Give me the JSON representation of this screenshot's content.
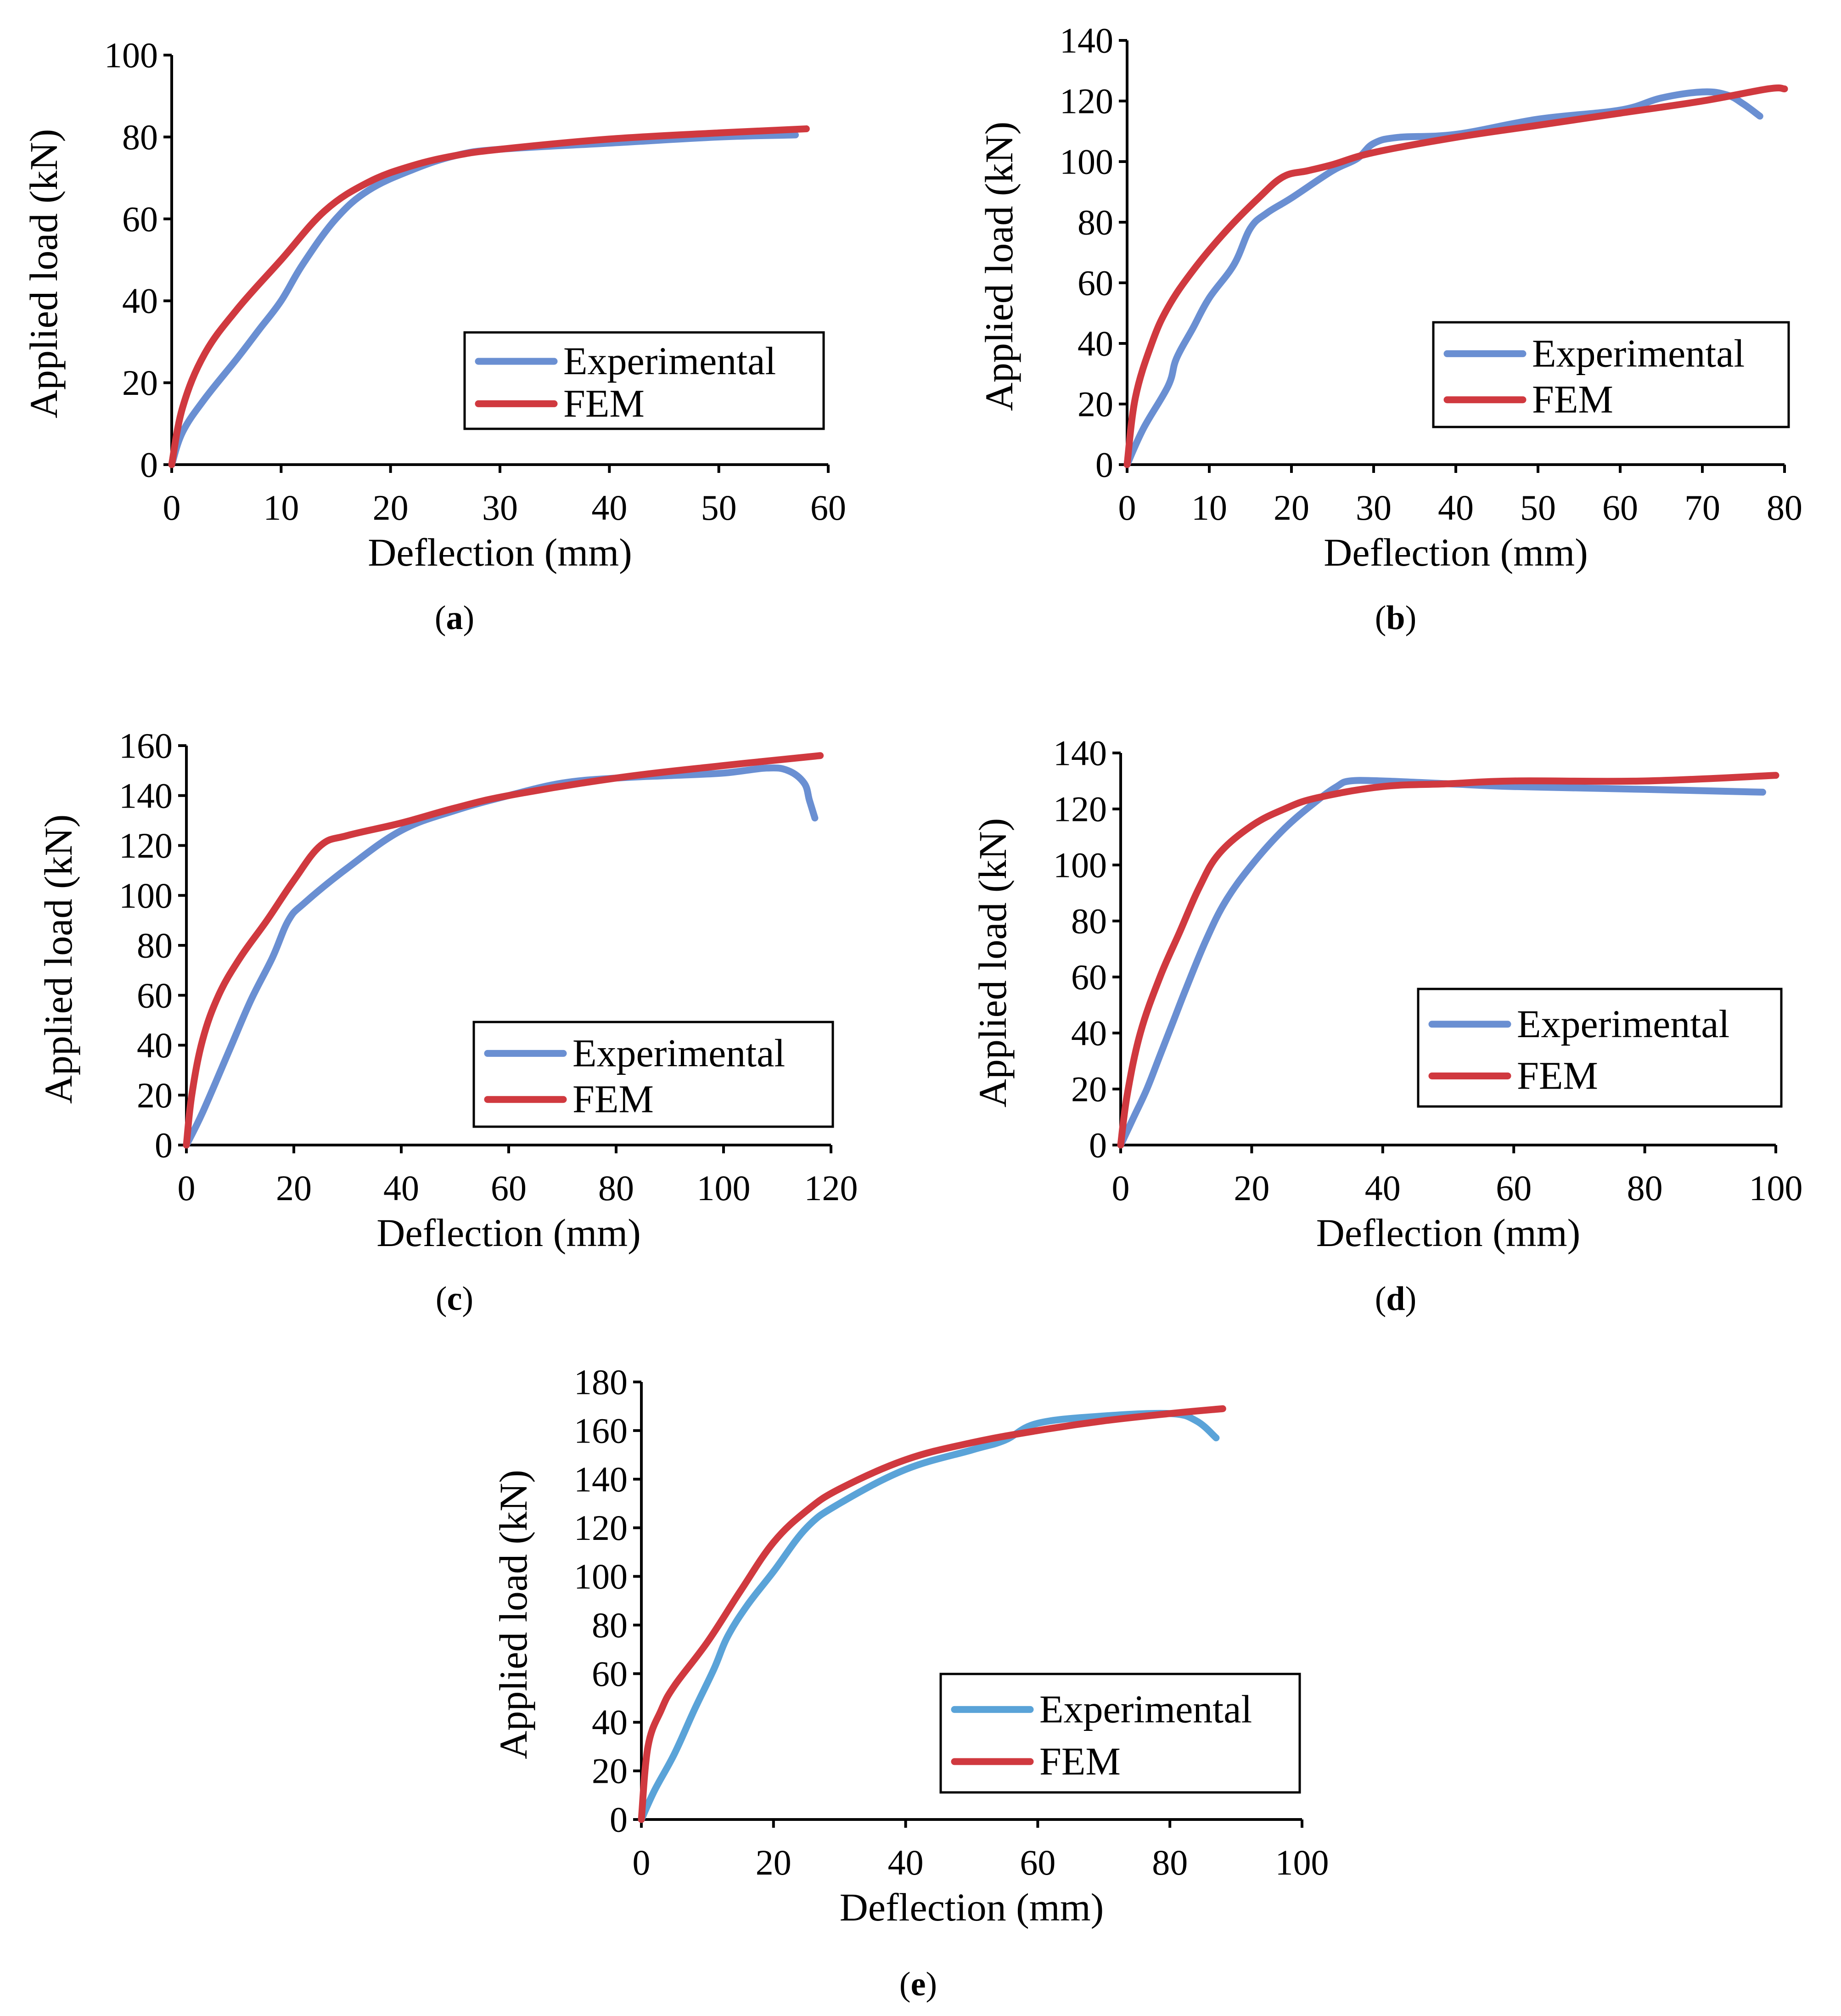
{
  "colors": {
    "experimental": "#6a8fd2",
    "experimental_e": "#5aa3d8",
    "fem": "#d0393f",
    "axis": "#000000"
  },
  "chart_data": [
    {
      "id": "a",
      "type": "line",
      "caption": "(a)",
      "xlabel": "Deflection (mm)",
      "ylabel": "Applied load (kN)",
      "xlim": [
        0,
        60
      ],
      "ylim": [
        0,
        100
      ],
      "xticks": [
        0,
        10,
        20,
        30,
        40,
        50,
        60
      ],
      "yticks": [
        0,
        20,
        40,
        60,
        80,
        100
      ],
      "grid": false,
      "legend_position": "bottom-right",
      "series": [
        {
          "name": "Experimental",
          "color_key": "experimental",
          "x": [
            0,
            1,
            3,
            6,
            8,
            10,
            12,
            15,
            18,
            22,
            26,
            30,
            40,
            50,
            57
          ],
          "y": [
            0,
            8,
            16,
            26,
            33,
            40,
            49,
            60,
            67,
            72,
            75.5,
            77,
            78.5,
            80,
            80.5
          ]
        },
        {
          "name": "FEM",
          "color_key": "fem",
          "x": [
            0,
            1,
            3,
            6,
            10,
            14,
            18,
            22,
            26,
            30,
            40,
            50,
            58
          ],
          "y": [
            0,
            14,
            27,
            38,
            50,
            62,
            69,
            73,
            75.5,
            77,
            79.5,
            81,
            82
          ]
        }
      ]
    },
    {
      "id": "b",
      "type": "line",
      "caption": "(b)",
      "xlabel": "Deflection (mm)",
      "ylabel": "Applied load (kN)",
      "xlim": [
        0,
        80
      ],
      "ylim": [
        0,
        140
      ],
      "xticks": [
        0,
        10,
        20,
        30,
        40,
        50,
        60,
        70,
        80
      ],
      "yticks": [
        0,
        20,
        40,
        60,
        80,
        100,
        120,
        140
      ],
      "grid": false,
      "legend_position": "bottom-right",
      "series": [
        {
          "name": "Experimental",
          "color_key": "experimental",
          "x": [
            0,
            2,
            5,
            6,
            8,
            10,
            13,
            15,
            17,
            20,
            25,
            28,
            30,
            33,
            40,
            50,
            60,
            65,
            70,
            73,
            75,
            77
          ],
          "y": [
            0,
            12,
            26,
            35,
            45,
            55,
            66,
            78,
            83,
            88,
            97,
            101,
            106,
            108,
            109,
            114,
            117,
            121,
            123,
            122,
            119,
            115
          ]
        },
        {
          "name": "FEM",
          "color_key": "fem",
          "x": [
            0,
            1,
            3,
            5,
            8,
            12,
            16,
            19,
            22,
            25,
            30,
            40,
            50,
            60,
            70,
            78,
            80
          ],
          "y": [
            0,
            22,
            40,
            52,
            64,
            77,
            88,
            95,
            97,
            99,
            103,
            108,
            112,
            116,
            120,
            124,
            124
          ]
        }
      ]
    },
    {
      "id": "c",
      "type": "line",
      "caption": "(c)",
      "xlabel": "Deflection (mm)",
      "ylabel": "Applied load (kN)",
      "xlim": [
        0,
        120
      ],
      "ylim": [
        0,
        160
      ],
      "xticks": [
        0,
        20,
        40,
        60,
        80,
        100,
        120
      ],
      "yticks": [
        0,
        20,
        40,
        60,
        80,
        100,
        120,
        140,
        160
      ],
      "grid": false,
      "legend_position": "bottom-right",
      "series": [
        {
          "name": "Experimental",
          "color_key": "experimental",
          "x": [
            0,
            3,
            8,
            12,
            16,
            19,
            22,
            30,
            40,
            50,
            60,
            70,
            80,
            90,
            100,
            108,
            112,
            115,
            116,
            117
          ],
          "y": [
            0,
            13,
            38,
            58,
            75,
            90,
            97,
            111,
            126,
            134,
            140,
            145,
            147,
            148,
            149,
            151,
            150,
            145,
            138,
            131
          ]
        },
        {
          "name": "FEM",
          "color_key": "fem",
          "x": [
            0,
            1,
            3,
            6,
            10,
            15,
            20,
            25,
            30,
            40,
            50,
            60,
            80,
            100,
            118
          ],
          "y": [
            0,
            20,
            42,
            60,
            75,
            90,
            106,
            120,
            124,
            129,
            135,
            140,
            147,
            152,
            156
          ]
        }
      ]
    },
    {
      "id": "d",
      "type": "line",
      "caption": "(d)",
      "xlabel": "Deflection (mm)",
      "ylabel": "Applied load (kN)",
      "xlim": [
        0,
        100
      ],
      "ylim": [
        0,
        140
      ],
      "xticks": [
        0,
        20,
        40,
        60,
        80,
        100
      ],
      "yticks": [
        0,
        20,
        40,
        60,
        80,
        100,
        120,
        140
      ],
      "grid": false,
      "legend_position": "bottom-right",
      "series": [
        {
          "name": "Experimental",
          "color_key": "experimental",
          "x": [
            0,
            2,
            4,
            6,
            8,
            10,
            13,
            16,
            20,
            25,
            30,
            33,
            35,
            40,
            50,
            60,
            80,
            98
          ],
          "y": [
            0,
            10,
            20,
            32,
            44,
            56,
            73,
            87,
            100,
            113,
            123,
            128,
            130,
            130,
            129,
            128,
            127,
            126
          ]
        },
        {
          "name": "FEM",
          "color_key": "fem",
          "x": [
            0,
            1,
            3,
            6,
            9,
            12,
            15,
            20,
            25,
            30,
            40,
            50,
            60,
            80,
            100
          ],
          "y": [
            0,
            18,
            40,
            60,
            76,
            92,
            104,
            114,
            120,
            124,
            128,
            129,
            130,
            130,
            132
          ]
        }
      ]
    },
    {
      "id": "e",
      "type": "line",
      "caption": "(e)",
      "xlabel": "Deflection (mm)",
      "ylabel": "Applied load (kN)",
      "xlim": [
        0,
        100
      ],
      "ylim": [
        0,
        180
      ],
      "xticks": [
        0,
        20,
        40,
        60,
        80,
        100
      ],
      "yticks": [
        0,
        20,
        40,
        60,
        80,
        100,
        120,
        140,
        160,
        180
      ],
      "grid": false,
      "legend_position": "bottom-right",
      "series": [
        {
          "name": "Experimental",
          "color_key": "experimental_e",
          "x": [
            0,
            2,
            5,
            8,
            11,
            13,
            16,
            20,
            25,
            30,
            40,
            50,
            55,
            60,
            70,
            80,
            84,
            87
          ],
          "y": [
            0,
            12,
            27,
            45,
            62,
            75,
            88,
            102,
            120,
            130,
            144,
            152,
            156,
            163,
            166,
            167,
            164,
            157
          ]
        },
        {
          "name": "FEM",
          "color_key": "fem",
          "x": [
            0,
            1,
            3,
            5,
            10,
            15,
            20,
            25,
            30,
            40,
            50,
            60,
            70,
            80,
            88
          ],
          "y": [
            0,
            30,
            45,
            55,
            73,
            94,
            114,
            127,
            136,
            148,
            155,
            160,
            164,
            167,
            169
          ]
        }
      ]
    }
  ]
}
